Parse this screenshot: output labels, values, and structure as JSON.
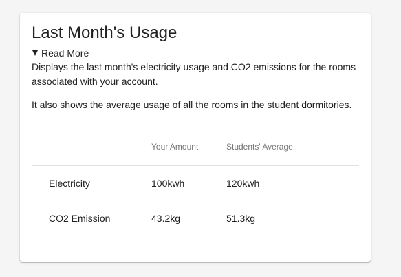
{
  "card": {
    "title": "Last Month's Usage",
    "read_more_label": "Read More",
    "description_1": "Displays the last month's electricity usage and CO2 emissions for the rooms associated with your account.",
    "description_2": "It also shows the average usage of all the rooms in the student dormitories."
  },
  "table": {
    "headers": [
      "",
      "Your Amount",
      "Students' Average."
    ],
    "rows": [
      {
        "label": "Electricity",
        "yours": "100kwh",
        "average": "120kwh"
      },
      {
        "label": "CO2 Emission",
        "yours": "43.2kg",
        "average": "51.3kg"
      }
    ]
  }
}
